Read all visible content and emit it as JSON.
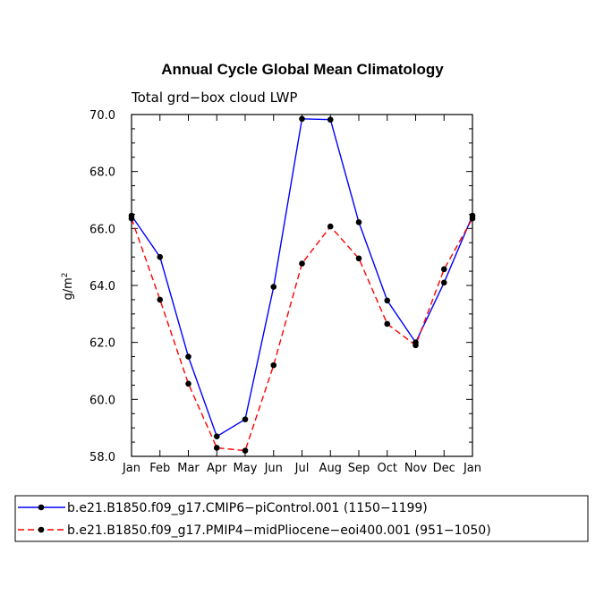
{
  "chart_data": {
    "type": "line",
    "title": "Annual Cycle Global Mean Climatology",
    "subtitle": "Total grd−box cloud LWP",
    "xlabel": "",
    "ylabel": "g/m",
    "ylabel_sup": "2",
    "categories": [
      "Jan",
      "Feb",
      "Mar",
      "Apr",
      "May",
      "Jun",
      "Jul",
      "Aug",
      "Sep",
      "Oct",
      "Nov",
      "Dec",
      "Jan"
    ],
    "ylim": [
      58.0,
      70.0
    ],
    "yticks": [
      58.0,
      60.0,
      62.0,
      64.0,
      66.0,
      68.0,
      70.0
    ],
    "ytick_labels": [
      "58.0",
      "60.0",
      "62.0",
      "64.0",
      "66.0",
      "68.0",
      "70.0"
    ],
    "grid": false,
    "legend_position": "bottom",
    "series": [
      {
        "name": "b.e21.B1850.f09_g17.CMIP6−piControl.001 (1150−1199)",
        "color": "#0000ff",
        "dash": "solid",
        "values": [
          66.45,
          65.0,
          61.5,
          58.7,
          59.3,
          63.95,
          69.85,
          69.82,
          66.22,
          63.47,
          62.0,
          64.1,
          66.45
        ]
      },
      {
        "name": "b.e21.B1850.f09_g17.PMIP4−midPliocene−eoi400.001 (951−1050)",
        "color": "#ff0000",
        "dash": "dashed",
        "values": [
          66.35,
          63.5,
          60.55,
          58.3,
          58.2,
          61.2,
          64.77,
          66.07,
          64.95,
          62.65,
          61.9,
          64.57,
          66.35
        ]
      }
    ]
  }
}
